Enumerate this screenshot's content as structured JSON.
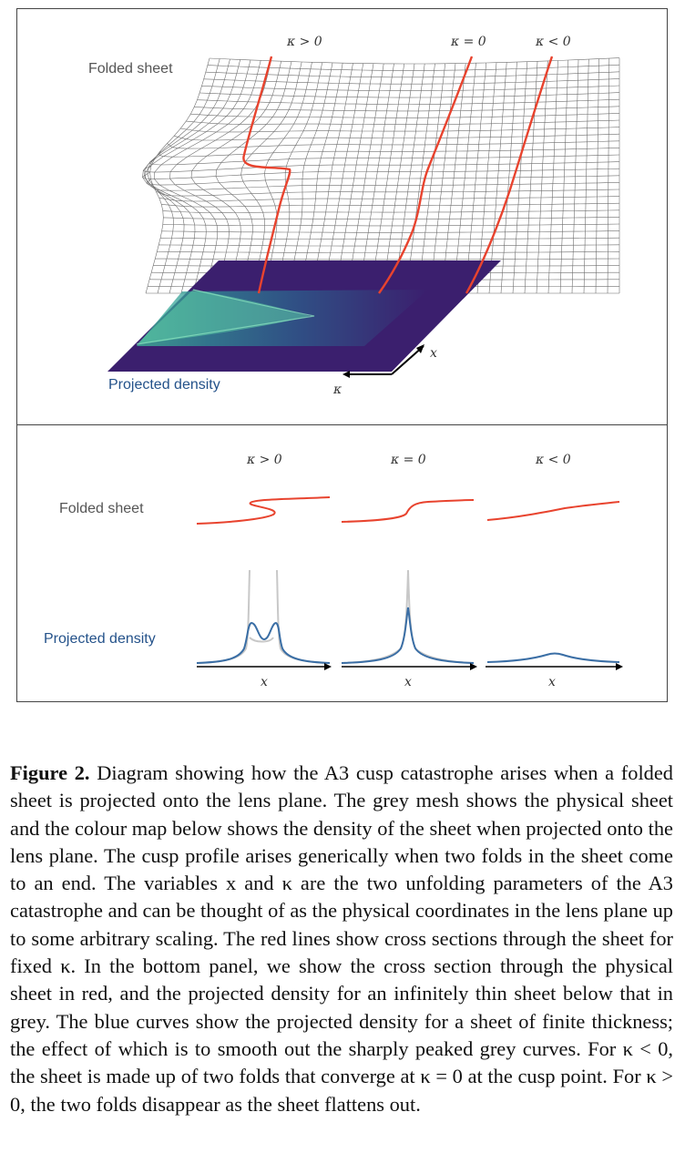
{
  "top_panel": {
    "label_sheet": "Folded sheet",
    "label_density": "Projected density",
    "kappa_labels": [
      "κ > 0",
      "κ = 0",
      "κ < 0"
    ],
    "axis_x": "x",
    "axis_kappa": "κ"
  },
  "bottom_panel": {
    "label_sheet": "Folded sheet",
    "label_density": "Projected density",
    "kappa_labels": [
      "κ > 0",
      "κ = 0",
      "κ < 0"
    ],
    "axis_labels": [
      "x",
      "x",
      "x"
    ]
  },
  "colors": {
    "mesh": "#555555",
    "red_curve": "#e8432e",
    "blue_curve": "#3a6ea5",
    "grey_curve": "#c8c8c8",
    "density_dark": "#3b1f6e",
    "density_bright": "#3fbf9a",
    "label_density": "#24528a"
  },
  "caption": {
    "figure_label": "Figure 2.",
    "text": "Diagram showing how the A3 cusp catastrophe arises when a folded sheet is projected onto the lens plane. The grey mesh shows the physical sheet and the colour map below shows the density of the sheet when projected onto the lens plane. The cusp profile arises generically when two folds in the sheet come to an end. The variables x and κ are the two unfolding parameters of the A3 catastrophe and can be thought of as the physical coordinates in the lens plane up to some arbitrary scaling. The red lines show cross sections through the sheet for fixed κ. In the bottom panel, we show the cross section through the physical sheet in red, and the projected density for an infinitely thin sheet below that in grey. The blue curves show the projected density for a sheet of finite thickness; the effect of which is to smooth out the sharply peaked grey curves. For κ < 0, the sheet is made up of two folds that converge at κ = 0 at the cusp point. For κ > 0, the two folds disappear as the sheet flattens out."
  }
}
